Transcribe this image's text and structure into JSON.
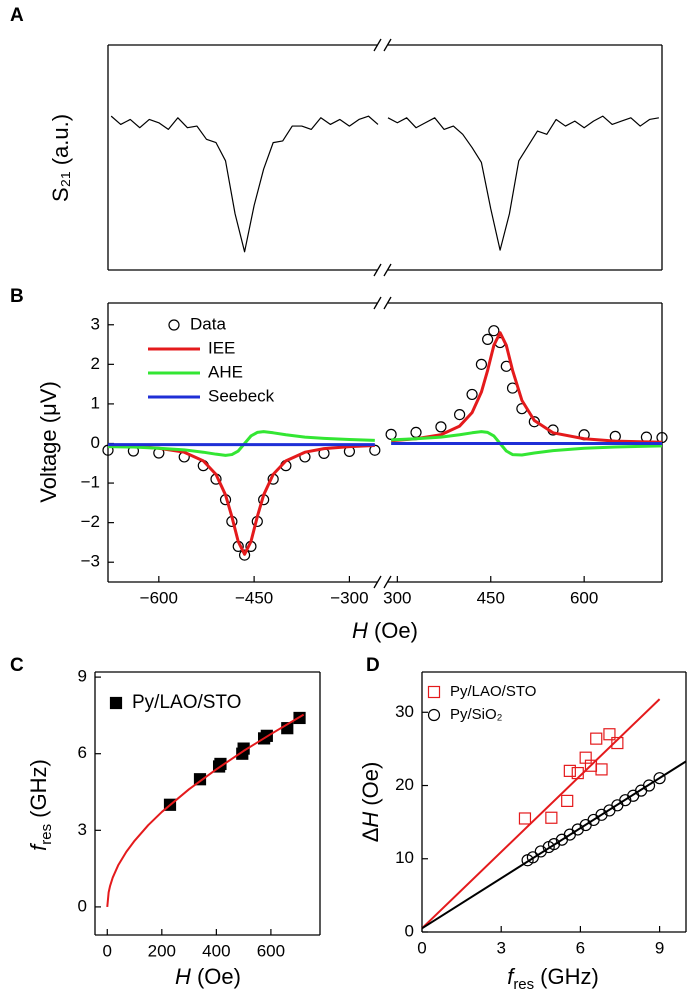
{
  "chart_data": [
    {
      "type": "line",
      "label": "A",
      "ylabel": "S₂₁ (a.u.)",
      "xlim": [
        -680,
        725
      ],
      "xbreak": [
        -255,
        285
      ],
      "ylim": [
        -0.06,
        1.3
      ],
      "x": [
        -675,
        -660,
        -645,
        -630,
        -615,
        -600,
        -585,
        -570,
        -555,
        -540,
        -525,
        -510,
        -495,
        -480,
        -465,
        -450,
        -435,
        -420,
        -405,
        -390,
        -375,
        -360,
        -345,
        -330,
        -315,
        -300,
        -285,
        -270,
        -255,
        285,
        300,
        315,
        330,
        345,
        360,
        375,
        390,
        405,
        420,
        435,
        450,
        465,
        480,
        495,
        510,
        525,
        540,
        555,
        570,
        585,
        600,
        615,
        630,
        645,
        660,
        675,
        690,
        705,
        720
      ],
      "series": [
        {
          "color": "#000000",
          "values": [
            0.87,
            0.82,
            0.85,
            0.8,
            0.85,
            0.83,
            0.79,
            0.86,
            0.8,
            0.81,
            0.73,
            0.71,
            0.6,
            0.28,
            0.05,
            0.33,
            0.55,
            0.71,
            0.72,
            0.81,
            0.81,
            0.79,
            0.86,
            0.82,
            0.85,
            0.81,
            0.85,
            0.87,
            0.82,
            0.86,
            0.83,
            0.86,
            0.8,
            0.83,
            0.86,
            0.79,
            0.81,
            0.76,
            0.68,
            0.59,
            0.31,
            0.06,
            0.28,
            0.6,
            0.69,
            0.78,
            0.76,
            0.85,
            0.81,
            0.84,
            0.8,
            0.84,
            0.87,
            0.82,
            0.84,
            0.86,
            0.81,
            0.85,
            0.86
          ]
        }
      ]
    },
    {
      "type": "line",
      "label": "B",
      "ylabel": "Voltage (μV)",
      "xlabel": [
        "H",
        "(Oe)"
      ],
      "xlim": [
        -680,
        725
      ],
      "xbreak": [
        -255,
        285
      ],
      "ylim": [
        -3.5,
        3.55
      ],
      "xticks": [
        {
          "value": -600,
          "label": "−600"
        },
        {
          "value": -450,
          "label": "−450"
        },
        {
          "value": -300,
          "label": "−300"
        },
        300,
        450,
        600
      ],
      "yticks": [
        {
          "value": -3,
          "label": "−3"
        },
        {
          "value": -2,
          "label": "−2"
        },
        {
          "value": -1,
          "label": "−1"
        },
        0,
        1,
        2,
        3
      ],
      "legend": "upper left",
      "x": [
        -680,
        -640,
        -600,
        -560,
        -530,
        -510,
        -495,
        -485,
        -475,
        -465,
        -455,
        -445,
        -435,
        -420,
        -400,
        -370,
        -340,
        -300,
        -260,
        290,
        330,
        370,
        400,
        420,
        435,
        445,
        455,
        465,
        475,
        485,
        500,
        520,
        550,
        600,
        650,
        700,
        725
      ],
      "series": [
        {
          "name": "Data",
          "color": "#000000",
          "marker": "circle",
          "filled": false,
          "values": [
            -0.17,
            -0.19,
            -0.24,
            -0.34,
            -0.56,
            -0.9,
            -1.42,
            -1.97,
            -2.6,
            -2.82,
            -2.6,
            -1.97,
            -1.42,
            -0.9,
            -0.56,
            -0.34,
            -0.25,
            -0.2,
            -0.17,
            0.23,
            0.28,
            0.42,
            0.73,
            1.24,
            2.0,
            2.63,
            2.85,
            2.55,
            1.95,
            1.4,
            0.88,
            0.55,
            0.34,
            0.22,
            0.18,
            0.16,
            0.15
          ]
        },
        {
          "name": "IEE",
          "color": "#e41a1c",
          "values": [
            -0.05,
            -0.07,
            -0.12,
            -0.22,
            -0.44,
            -0.78,
            -1.3,
            -1.85,
            -2.48,
            -2.8,
            -2.48,
            -1.85,
            -1.3,
            -0.78,
            -0.44,
            -0.22,
            -0.13,
            -0.08,
            -0.05,
            0.07,
            0.12,
            0.22,
            0.44,
            0.78,
            1.3,
            1.85,
            2.48,
            2.8,
            2.48,
            1.85,
            1.09,
            0.58,
            0.27,
            0.12,
            0.06,
            0.04,
            0.03
          ]
        },
        {
          "name": "AHE",
          "color": "#33e633",
          "values": [
            -0.08,
            -0.09,
            -0.12,
            -0.16,
            -0.22,
            -0.27,
            -0.3,
            -0.28,
            -0.19,
            0,
            0.19,
            0.28,
            0.3,
            0.27,
            0.22,
            0.16,
            0.13,
            0.1,
            0.08,
            0.09,
            0.12,
            0.16,
            0.22,
            0.27,
            0.3,
            0.28,
            0.19,
            0,
            -0.19,
            -0.28,
            -0.29,
            -0.24,
            -0.18,
            -0.12,
            -0.09,
            -0.07,
            -0.06
          ]
        },
        {
          "name": "Seebeck",
          "color": "#1f2fd6",
          "values": [
            -0.03,
            -0.03,
            -0.03,
            -0.03,
            -0.03,
            -0.03,
            -0.03,
            -0.03,
            -0.03,
            -0.03,
            -0.03,
            -0.03,
            -0.03,
            -0.03,
            -0.03,
            -0.03,
            -0.03,
            -0.03,
            -0.03,
            0,
            0,
            0,
            0,
            0,
            0,
            0,
            0,
            0,
            0,
            0,
            0,
            0,
            0,
            0,
            0,
            0,
            0
          ]
        }
      ]
    },
    {
      "type": "scatter",
      "label": "C",
      "ylabel": [
        "f",
        "res",
        "(GHz)"
      ],
      "xlabel": [
        "H",
        "(Oe)"
      ],
      "xlim": [
        -45,
        780
      ],
      "ylim": [
        -1.1,
        9.2
      ],
      "xticks": [
        0,
        200,
        400,
        600
      ],
      "yticks": [
        0,
        3,
        6,
        9
      ],
      "legend": "upper left",
      "series": [
        {
          "name": "Py/LAO/STO",
          "color": "#000000",
          "marker": "square",
          "filled": true,
          "x": [
            230,
            340,
            410,
            415,
            495,
            500,
            575,
            585,
            660,
            705
          ],
          "values": [
            4.0,
            5.0,
            5.5,
            5.6,
            6.0,
            6.2,
            6.6,
            6.7,
            7.0,
            7.4
          ]
        },
        {
          "color": "#e41a1c",
          "x": [
            0,
            5,
            10,
            20,
            40,
            70,
            100,
            150,
            200,
            300,
            400,
            500,
            600,
            720
          ],
          "values": [
            0,
            0.57,
            0.81,
            1.15,
            1.63,
            2.16,
            2.59,
            3.2,
            3.72,
            4.61,
            5.39,
            6.11,
            6.77,
            7.53
          ]
        }
      ]
    },
    {
      "type": "scatter",
      "label": "D",
      "ylabel": [
        "Δ",
        "H",
        "(Oe)"
      ],
      "xlabel": [
        "f",
        "res",
        "(GHz)"
      ],
      "xlim": [
        0,
        10
      ],
      "ylim": [
        0,
        35.5
      ],
      "xticks": [
        0,
        3,
        6,
        9
      ],
      "yticks": [
        0,
        10,
        20,
        30
      ],
      "legend": "upper left",
      "series": [
        {
          "name": "Py/LAO/STO",
          "color": "#e41a1c",
          "marker": "square",
          "filled": false,
          "x": [
            3.9,
            4.9,
            5.5,
            5.6,
            5.9,
            6.2,
            6.4,
            6.6,
            6.8,
            7.1,
            7.4
          ],
          "values": [
            15.5,
            15.6,
            17.9,
            22.0,
            21.7,
            23.8,
            22.7,
            26.4,
            22.2,
            27.0,
            25.8
          ]
        },
        {
          "name": "Py/SiO₂",
          "color": "#000000",
          "marker": "circle",
          "filled": false,
          "x": [
            4.0,
            4.2,
            4.5,
            4.8,
            5.0,
            5.3,
            5.6,
            5.9,
            6.2,
            6.5,
            6.8,
            7.1,
            7.4,
            7.7,
            8.0,
            8.3,
            8.6,
            9.0
          ],
          "values": [
            9.8,
            10.2,
            11.0,
            11.6,
            12.0,
            12.6,
            13.3,
            14.0,
            14.6,
            15.3,
            16.0,
            16.6,
            17.3,
            18.0,
            18.6,
            19.3,
            20.0,
            21.0
          ]
        },
        {
          "color": "#e41a1c",
          "x": [
            0,
            9
          ],
          "values": [
            0.5,
            31.8
          ]
        },
        {
          "color": "#000000",
          "x": [
            0,
            10
          ],
          "values": [
            0.5,
            23.3
          ]
        }
      ]
    }
  ]
}
